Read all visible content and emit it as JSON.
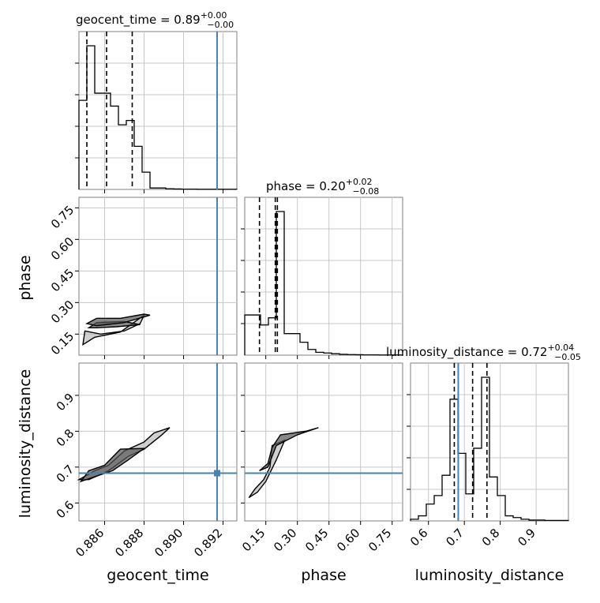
{
  "chart_data": {
    "type": "corner",
    "parameters": [
      "geocent_time",
      "phase",
      "luminosity_distance"
    ],
    "titles": [
      {
        "param": "geocent_time",
        "median": "0.89",
        "plus": "+0.00",
        "minus": "−0.00"
      },
      {
        "param": "phase",
        "median": "0.20",
        "plus": "+0.02",
        "minus": "−0.08"
      },
      {
        "param": "luminosity_distance",
        "median": "0.72",
        "plus": "+0.04",
        "minus": "−0.05"
      }
    ],
    "axes": {
      "geocent_time": {
        "range": [
          0.8847,
          0.8927
        ],
        "ticks": [
          "0.886",
          "0.888",
          "0.890",
          "0.892"
        ],
        "tick_values": [
          0.886,
          0.888,
          0.89,
          0.892
        ],
        "label": "geocent_time"
      },
      "phase": {
        "range": [
          0.05,
          0.8
        ],
        "ticks": [
          "0.15",
          "0.30",
          "0.45",
          "0.60",
          "0.75"
        ],
        "tick_values": [
          0.15,
          0.3,
          0.45,
          0.6,
          0.75
        ],
        "label": "phase"
      },
      "luminosity_distance": {
        "range": [
          0.55,
          0.99
        ],
        "ticks": [
          "0.6",
          "0.7",
          "0.8",
          "0.9"
        ],
        "tick_values": [
          0.6,
          0.7,
          0.8,
          0.9
        ],
        "label": "luminosity_distance"
      }
    },
    "injection": {
      "geocent_time": 0.8917,
      "luminosity_distance": 0.683
    },
    "quantiles": {
      "geocent_time": [
        0.8851,
        0.8861,
        0.8874
      ],
      "phase": [
        0.12,
        0.195,
        0.205
      ],
      "luminosity_distance": [
        0.672,
        0.723,
        0.763
      ]
    },
    "histograms": {
      "geocent_time": {
        "edges": [
          0.8847,
          0.8851,
          0.8855,
          0.8859,
          0.8863,
          0.8867,
          0.8871,
          0.8875,
          0.8879,
          0.8883,
          0.8887,
          0.8891,
          0.8895,
          0.8899,
          0.8903,
          0.8907,
          0.8911,
          0.8915,
          0.8919,
          0.8923,
          0.8927
        ],
        "counts": [
          0.62,
          1.0,
          0.67,
          0.67,
          0.58,
          0.45,
          0.48,
          0.3,
          0.12,
          0.01,
          0.01,
          0.005,
          0.003,
          0.002,
          0.002,
          0.001,
          0.001,
          0.001,
          0.001,
          0.001
        ]
      },
      "phase": {
        "edges": [
          0.05,
          0.0875,
          0.125,
          0.1625,
          0.2,
          0.2375,
          0.275,
          0.3125,
          0.35,
          0.3875,
          0.425,
          0.4625,
          0.5,
          0.5375,
          0.575,
          0.6125,
          0.65,
          0.6875,
          0.725,
          0.7625,
          0.8
        ],
        "counts": [
          0.28,
          0.28,
          0.21,
          0.26,
          1.0,
          0.15,
          0.15,
          0.09,
          0.04,
          0.02,
          0.015,
          0.01,
          0.006,
          0.004,
          0.003,
          0.002,
          0.002,
          0.001,
          0.001,
          0.001
        ]
      },
      "luminosity_distance": {
        "edges": [
          0.55,
          0.572,
          0.594,
          0.616,
          0.638,
          0.66,
          0.682,
          0.704,
          0.726,
          0.748,
          0.77,
          0.792,
          0.814,
          0.836,
          0.858,
          0.88,
          0.902,
          0.924,
          0.946,
          0.968,
          0.99
        ],
        "counts": [
          0.01,
          0.03,
          0.1,
          0.15,
          0.27,
          0.72,
          0.4,
          0.16,
          0.43,
          0.85,
          0.26,
          0.15,
          0.03,
          0.02,
          0.01,
          0.005,
          0.005,
          0.003,
          0.003,
          0.003
        ]
      }
    },
    "contours": {
      "phase_vs_geocent_time": [
        [
          [
            0.8849,
            0.1
          ],
          [
            0.8855,
            0.135
          ],
          [
            0.8868,
            0.16
          ],
          [
            0.888,
            0.24
          ],
          [
            0.8878,
            0.2
          ],
          [
            0.887,
            0.165
          ],
          [
            0.8858,
            0.15
          ],
          [
            0.885,
            0.165
          ],
          [
            0.8849,
            0.1
          ]
        ],
        [
          [
            0.8852,
            0.18
          ],
          [
            0.8856,
            0.205
          ],
          [
            0.887,
            0.21
          ],
          [
            0.8878,
            0.195
          ],
          [
            0.8866,
            0.185
          ],
          [
            0.8856,
            0.18
          ],
          [
            0.8852,
            0.18
          ]
        ],
        [
          [
            0.8851,
            0.2
          ],
          [
            0.8856,
            0.225
          ],
          [
            0.8868,
            0.225
          ],
          [
            0.888,
            0.245
          ],
          [
            0.8883,
            0.24
          ],
          [
            0.887,
            0.205
          ],
          [
            0.8856,
            0.19
          ],
          [
            0.8851,
            0.2
          ]
        ]
      ],
      "luminosity_distance_vs_geocent_time": [
        [
          [
            0.8847,
            0.665
          ],
          [
            0.8855,
            0.69
          ],
          [
            0.8862,
            0.705
          ],
          [
            0.887,
            0.745
          ],
          [
            0.888,
            0.77
          ],
          [
            0.8885,
            0.795
          ],
          [
            0.8893,
            0.81
          ],
          [
            0.8889,
            0.79
          ],
          [
            0.888,
            0.75
          ],
          [
            0.8872,
            0.73
          ],
          [
            0.8862,
            0.69
          ],
          [
            0.8852,
            0.665
          ],
          [
            0.8847,
            0.665
          ]
        ],
        [
          [
            0.8848,
            0.66
          ],
          [
            0.8856,
            0.675
          ],
          [
            0.8864,
            0.69
          ],
          [
            0.8872,
            0.72
          ],
          [
            0.888,
            0.752
          ],
          [
            0.8868,
            0.75
          ],
          [
            0.886,
            0.705
          ],
          [
            0.8852,
            0.69
          ],
          [
            0.8848,
            0.66
          ]
        ]
      ],
      "luminosity_distance_vs_phase": [
        [
          [
            0.07,
            0.615
          ],
          [
            0.1,
            0.64
          ],
          [
            0.14,
            0.665
          ],
          [
            0.17,
            0.7
          ],
          [
            0.18,
            0.76
          ],
          [
            0.24,
            0.775
          ],
          [
            0.2,
            0.72
          ],
          [
            0.15,
            0.66
          ],
          [
            0.11,
            0.63
          ],
          [
            0.07,
            0.615
          ]
        ],
        [
          [
            0.12,
            0.69
          ],
          [
            0.16,
            0.71
          ],
          [
            0.18,
            0.755
          ],
          [
            0.22,
            0.79
          ],
          [
            0.34,
            0.8
          ],
          [
            0.4,
            0.81
          ],
          [
            0.3,
            0.79
          ],
          [
            0.2,
            0.76
          ],
          [
            0.16,
            0.7
          ],
          [
            0.12,
            0.69
          ]
        ]
      ]
    }
  }
}
